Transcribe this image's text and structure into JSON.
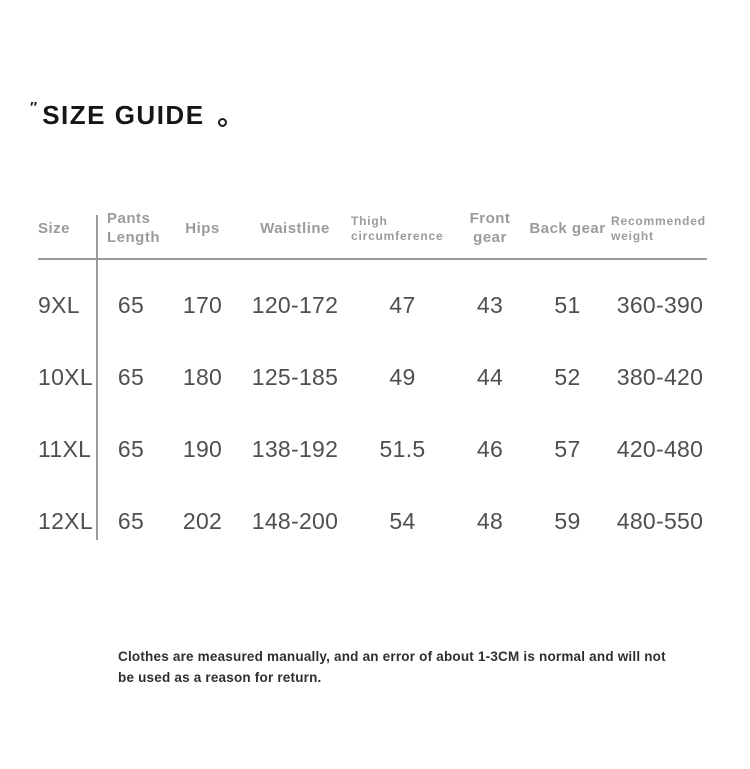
{
  "title": {
    "quote": "″",
    "text": "SIZE GUIDE",
    "period": "。"
  },
  "table": {
    "headers": {
      "size": "Size",
      "pants_length": "Pants Length",
      "hips": "Hips",
      "waistline": "Waistline",
      "thigh_circumference": "Thigh circumference",
      "front_gear": "Front gear",
      "back_gear": "Back gear",
      "recommended_weight": "Recommended weight"
    },
    "rows": [
      {
        "size": "9XL",
        "pants_length": "65",
        "hips": "170",
        "waistline": "120-172",
        "thigh_circumference": "47",
        "front_gear": "43",
        "back_gear": "51",
        "recommended_weight": "360-390"
      },
      {
        "size": "10XL",
        "pants_length": "65",
        "hips": "180",
        "waistline": "125-185",
        "thigh_circumference": "49",
        "front_gear": "44",
        "back_gear": "52",
        "recommended_weight": "380-420"
      },
      {
        "size": "11XL",
        "pants_length": "65",
        "hips": "190",
        "waistline": "138-192",
        "thigh_circumference": "51.5",
        "front_gear": "46",
        "back_gear": "57",
        "recommended_weight": "420-480"
      },
      {
        "size": "12XL",
        "pants_length": "65",
        "hips": "202",
        "waistline": "148-200",
        "thigh_circumference": "54",
        "front_gear": "48",
        "back_gear": "59",
        "recommended_weight": "480-550"
      }
    ]
  },
  "note_lines": {
    "line1": "Clothes are measured manually, and an error of about 1-3CM is normal and will not",
    "line2": "be used as a reason for return."
  }
}
